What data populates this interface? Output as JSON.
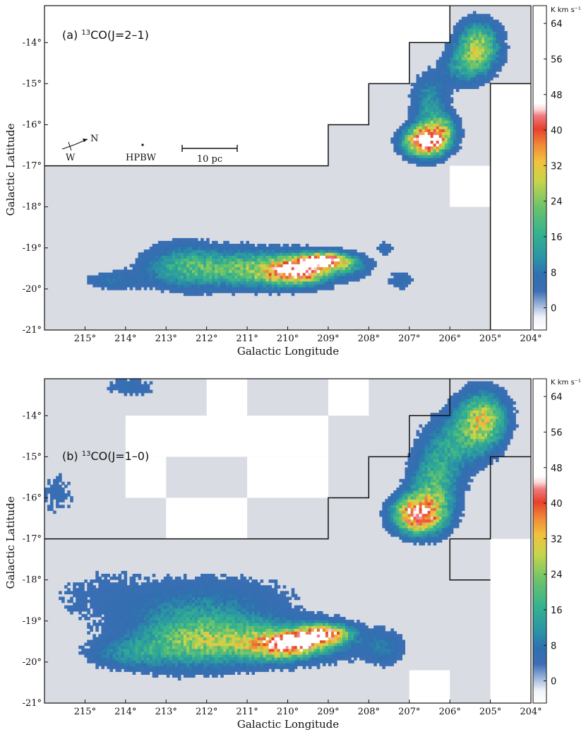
{
  "chart_data": [
    {
      "type": "heatmap",
      "panel_label": "(a) ",
      "species_sup": "13",
      "species": "CO(J=2–1)",
      "xlabel": "Galactic Longitude",
      "ylabel": "Galactic Latitude",
      "xlim": [
        216,
        204
      ],
      "ylim": [
        -21,
        -13.1
      ],
      "x_ticks": [
        "215°",
        "214°",
        "213°",
        "212°",
        "211°",
        "210°",
        "209°",
        "208°",
        "207°",
        "206°",
        "205°",
        "204°"
      ],
      "x_tick_values": [
        215,
        214,
        213,
        212,
        211,
        210,
        209,
        208,
        207,
        206,
        205,
        204
      ],
      "y_ticks": [
        "-14°",
        "-15°",
        "-16°",
        "-17°",
        "-18°",
        "-19°",
        "-20°",
        "-21°"
      ],
      "y_tick_values": [
        -14,
        -15,
        -16,
        -17,
        -18,
        -19,
        -20,
        -21
      ],
      "colorbar": {
        "unit": "K km s⁻¹",
        "ticks": [
          "64",
          "56",
          "48",
          "40",
          "32",
          "24",
          "16",
          "8",
          "0"
        ],
        "tick_values": [
          64,
          56,
          48,
          40,
          32,
          24,
          16,
          8,
          0
        ],
        "range": [
          -5,
          68
        ]
      },
      "compass": {
        "west": "W",
        "north": "N"
      },
      "beam_label": "HPBW",
      "scale_bar": {
        "label": "10 pc",
        "length_deg": 1.4
      },
      "coverage_boundary": [
        [
          216,
          -17
        ],
        [
          209,
          -17
        ],
        [
          209,
          -16
        ],
        [
          208,
          -16
        ],
        [
          208,
          -15
        ],
        [
          207,
          -15
        ],
        [
          207,
          -14
        ],
        [
          206,
          -14
        ],
        [
          206,
          -13.1
        ]
      ],
      "coverage_boundary_east": [
        [
          205,
          -21
        ],
        [
          205,
          -15
        ],
        [
          204,
          -15
        ]
      ],
      "blank_regions": [
        [
          [
            216,
            -13.1
          ],
          [
            206,
            -13.1
          ],
          [
            206,
            -14
          ],
          [
            207,
            -14
          ],
          [
            207,
            -15
          ],
          [
            208,
            -15
          ],
          [
            208,
            -16
          ],
          [
            209,
            -16
          ],
          [
            209,
            -17
          ],
          [
            216,
            -17
          ]
        ],
        [
          [
            205,
            -15
          ],
          [
            204,
            -15
          ],
          [
            204,
            -21
          ],
          [
            205,
            -21
          ]
        ],
        [
          [
            206,
            -17
          ],
          [
            205,
            -17
          ],
          [
            205,
            -18
          ],
          [
            206,
            -18
          ]
        ]
      ],
      "emission_features": [
        {
          "l": 210.8,
          "b": -19.5,
          "sl": 1.4,
          "sb": 0.3,
          "peak": 22
        },
        {
          "l": 212.6,
          "b": -19.4,
          "sl": 0.6,
          "sb": 0.4,
          "peak": 9
        },
        {
          "l": 214.3,
          "b": -19.8,
          "sl": 0.5,
          "sb": 0.15,
          "peak": 7
        },
        {
          "l": 209.1,
          "b": -19.3,
          "sl": 0.35,
          "sb": 0.12,
          "peak": 44
        },
        {
          "l": 209.6,
          "b": -19.5,
          "sl": 0.4,
          "sb": 0.18,
          "peak": 26
        },
        {
          "l": 210.0,
          "b": -19.6,
          "sl": 0.5,
          "sb": 0.2,
          "peak": 18
        },
        {
          "l": 208.5,
          "b": -19.4,
          "sl": 0.3,
          "sb": 0.15,
          "peak": 10
        },
        {
          "l": 206.6,
          "b": -16.4,
          "sl": 0.35,
          "sb": 0.25,
          "peak": 48
        },
        {
          "l": 206.2,
          "b": -16.1,
          "sl": 0.25,
          "sb": 0.25,
          "peak": 18
        },
        {
          "l": 206.5,
          "b": -15.5,
          "sl": 0.3,
          "sb": 0.5,
          "peak": 12
        },
        {
          "l": 205.3,
          "b": -14.1,
          "sl": 0.35,
          "sb": 0.4,
          "peak": 26
        },
        {
          "l": 205.7,
          "b": -14.6,
          "sl": 0.35,
          "sb": 0.3,
          "peak": 10
        },
        {
          "l": 207.2,
          "b": -19.8,
          "sl": 0.2,
          "sb": 0.15,
          "peak": 6
        },
        {
          "l": 207.6,
          "b": -19.0,
          "sl": 0.15,
          "sb": 0.1,
          "peak": 6
        }
      ]
    },
    {
      "type": "heatmap",
      "panel_label": "(b) ",
      "species_sup": "13",
      "species": "CO(J=1–0)",
      "xlabel": "Galactic Longitude",
      "ylabel": "Galactic Latitude",
      "xlim": [
        216,
        204
      ],
      "ylim": [
        -21,
        -13.1
      ],
      "x_ticks": [
        "215°",
        "214°",
        "213°",
        "212°",
        "211°",
        "210°",
        "209°",
        "208°",
        "207°",
        "206°",
        "205°",
        "204°"
      ],
      "x_tick_values": [
        215,
        214,
        213,
        212,
        211,
        210,
        209,
        208,
        207,
        206,
        205,
        204
      ],
      "y_ticks": [
        "-14°",
        "-15°",
        "-16°",
        "-17°",
        "-18°",
        "-19°",
        "-20°",
        "-21°"
      ],
      "y_tick_values": [
        -14,
        -15,
        -16,
        -17,
        -18,
        -19,
        -20,
        -21
      ],
      "colorbar": {
        "unit": "K km s⁻¹",
        "ticks": [
          "64",
          "56",
          "48",
          "40",
          "32",
          "24",
          "16",
          "8",
          "0"
        ],
        "tick_values": [
          64,
          56,
          48,
          40,
          32,
          24,
          16,
          8,
          0
        ],
        "range": [
          -5,
          68
        ]
      },
      "coverage_boundary": [
        [
          216,
          -17
        ],
        [
          209,
          -17
        ],
        [
          209,
          -16
        ],
        [
          208,
          -16
        ],
        [
          208,
          -15
        ],
        [
          207,
          -15
        ],
        [
          207,
          -14
        ],
        [
          206,
          -14
        ],
        [
          206,
          -13.1
        ]
      ],
      "coverage_boundary_east": [
        [
          205,
          -18
        ],
        [
          206,
          -18
        ],
        [
          206,
          -17
        ],
        [
          205,
          -17
        ],
        [
          205,
          -15
        ],
        [
          204,
          -15
        ]
      ],
      "blank_regions": [
        [
          [
            214,
            -14
          ],
          [
            209,
            -14
          ],
          [
            209,
            -15
          ],
          [
            214,
            -15
          ]
        ],
        [
          [
            212,
            -13.1
          ],
          [
            211,
            -13.1
          ],
          [
            211,
            -14
          ],
          [
            212,
            -14
          ]
        ],
        [
          [
            214,
            -15
          ],
          [
            213,
            -15
          ],
          [
            213,
            -16
          ],
          [
            214,
            -16
          ]
        ],
        [
          [
            211,
            -15
          ],
          [
            209,
            -15
          ],
          [
            209,
            -16
          ],
          [
            211,
            -16
          ]
        ],
        [
          [
            213,
            -16
          ],
          [
            211,
            -16
          ],
          [
            211,
            -17
          ],
          [
            213,
            -17
          ]
        ],
        [
          [
            209,
            -13.1
          ],
          [
            208,
            -13.1
          ],
          [
            208,
            -14
          ],
          [
            209,
            -14
          ]
        ],
        [
          [
            205,
            -17
          ],
          [
            204,
            -17
          ],
          [
            204,
            -21
          ],
          [
            205,
            -21
          ]
        ],
        [
          [
            207,
            -20.2
          ],
          [
            206,
            -20.2
          ],
          [
            206,
            -21
          ],
          [
            207,
            -21
          ]
        ]
      ],
      "emission_features": [
        {
          "l": 210.8,
          "b": -19.5,
          "sl": 1.6,
          "sb": 0.35,
          "peak": 20
        },
        {
          "l": 212.4,
          "b": -19.3,
          "sl": 0.9,
          "sb": 0.6,
          "peak": 12
        },
        {
          "l": 213.9,
          "b": -19.8,
          "sl": 0.7,
          "sb": 0.25,
          "peak": 9
        },
        {
          "l": 209.1,
          "b": -19.3,
          "sl": 0.4,
          "sb": 0.15,
          "peak": 36
        },
        {
          "l": 209.7,
          "b": -19.5,
          "sl": 0.4,
          "sb": 0.15,
          "peak": 32
        },
        {
          "l": 210.2,
          "b": -19.6,
          "sl": 0.5,
          "sb": 0.2,
          "peak": 22
        },
        {
          "l": 211.2,
          "b": -18.5,
          "sl": 1.2,
          "sb": 0.5,
          "peak": 5
        },
        {
          "l": 214.5,
          "b": -18.4,
          "sl": 1.2,
          "sb": 0.6,
          "peak": 4
        },
        {
          "l": 206.8,
          "b": -16.4,
          "sl": 0.4,
          "sb": 0.3,
          "peak": 42
        },
        {
          "l": 206.4,
          "b": -15.8,
          "sl": 0.4,
          "sb": 0.6,
          "peak": 18
        },
        {
          "l": 205.2,
          "b": -14.1,
          "sl": 0.4,
          "sb": 0.45,
          "peak": 28
        },
        {
          "l": 205.9,
          "b": -14.7,
          "sl": 0.5,
          "sb": 0.5,
          "peak": 12
        },
        {
          "l": 207.6,
          "b": -19.7,
          "sl": 0.3,
          "sb": 0.3,
          "peak": 6
        },
        {
          "l": 215.7,
          "b": -15.9,
          "sl": 0.4,
          "sb": 0.5,
          "peak": 4
        },
        {
          "l": 213.9,
          "b": -13.3,
          "sl": 0.5,
          "sb": 0.2,
          "peak": 5
        }
      ]
    }
  ]
}
